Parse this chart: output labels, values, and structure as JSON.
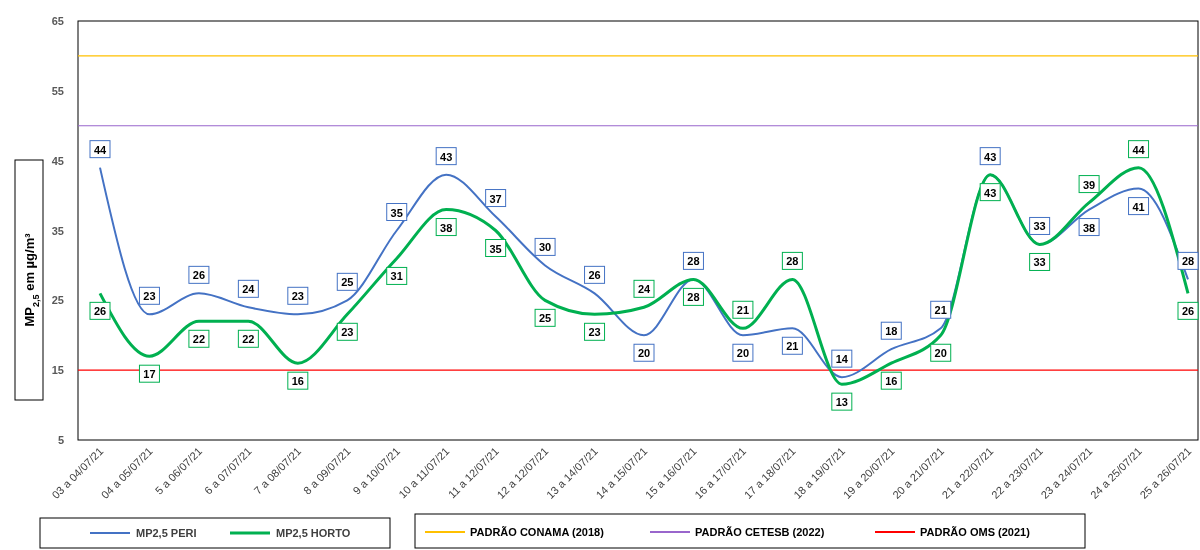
{
  "chart_data": {
    "type": "line",
    "ylabel": "MP$_{2,5}$ em µg/m³",
    "categories": [
      "03 a 04/07/21",
      "04 a 05/07/21",
      "5 a 06/07/21",
      "6 a 07/07/21",
      "7 a 08/07/21",
      "8 a 09/07/21",
      "9 a 10/07/21",
      "10 a 11/07/21",
      "11 a 12/07/21",
      "12 a 12/07/21",
      "13 a 14/07/21",
      "14 a 15/07/21",
      "15 a 16/07/21",
      "16 a 17/07/21",
      "17 a 18/07/21",
      "18 a 19/07/21",
      "19 a 20/07/21",
      "20 a 21/07/21",
      "21 a 22/07/21",
      "22 a 23/07/21",
      "23 a 24/07/21",
      "24 a 25/07/21",
      "25 a 26/07/21"
    ],
    "series": [
      {
        "name": "MP2,5 PERI",
        "color": "#4472c4",
        "values": [
          44,
          23,
          26,
          24,
          23,
          25,
          35,
          43,
          37,
          30,
          26,
          20,
          28,
          20,
          21,
          14,
          18,
          21,
          43,
          33,
          38,
          41,
          28
        ]
      },
      {
        "name": "MP2,5 HORTO",
        "color": "#00b050",
        "values": [
          26,
          17,
          22,
          22,
          16,
          23,
          31,
          38,
          35,
          25,
          23,
          24,
          28,
          21,
          28,
          13,
          16,
          20,
          43,
          33,
          39,
          44,
          26
        ]
      }
    ],
    "ylim": [
      5,
      65
    ],
    "yticks": [
      5,
      15,
      25,
      35,
      45,
      55,
      65
    ],
    "ref_lines": [
      {
        "axis": "y",
        "value": 60,
        "label": "PADRÃO CONAMA (2018)",
        "color": "#ffc000"
      },
      {
        "axis": "y",
        "value": 50,
        "label": "PADRÃO CETESB (2022)",
        "color": "#9966cc"
      },
      {
        "axis": "y",
        "value": 15,
        "label": "PADRÃO OMS (2021)",
        "color": "#ff0000"
      }
    ],
    "data_labels": true,
    "legend": "bottom",
    "grid": false,
    "marker": "none",
    "line_style": "solid"
  }
}
